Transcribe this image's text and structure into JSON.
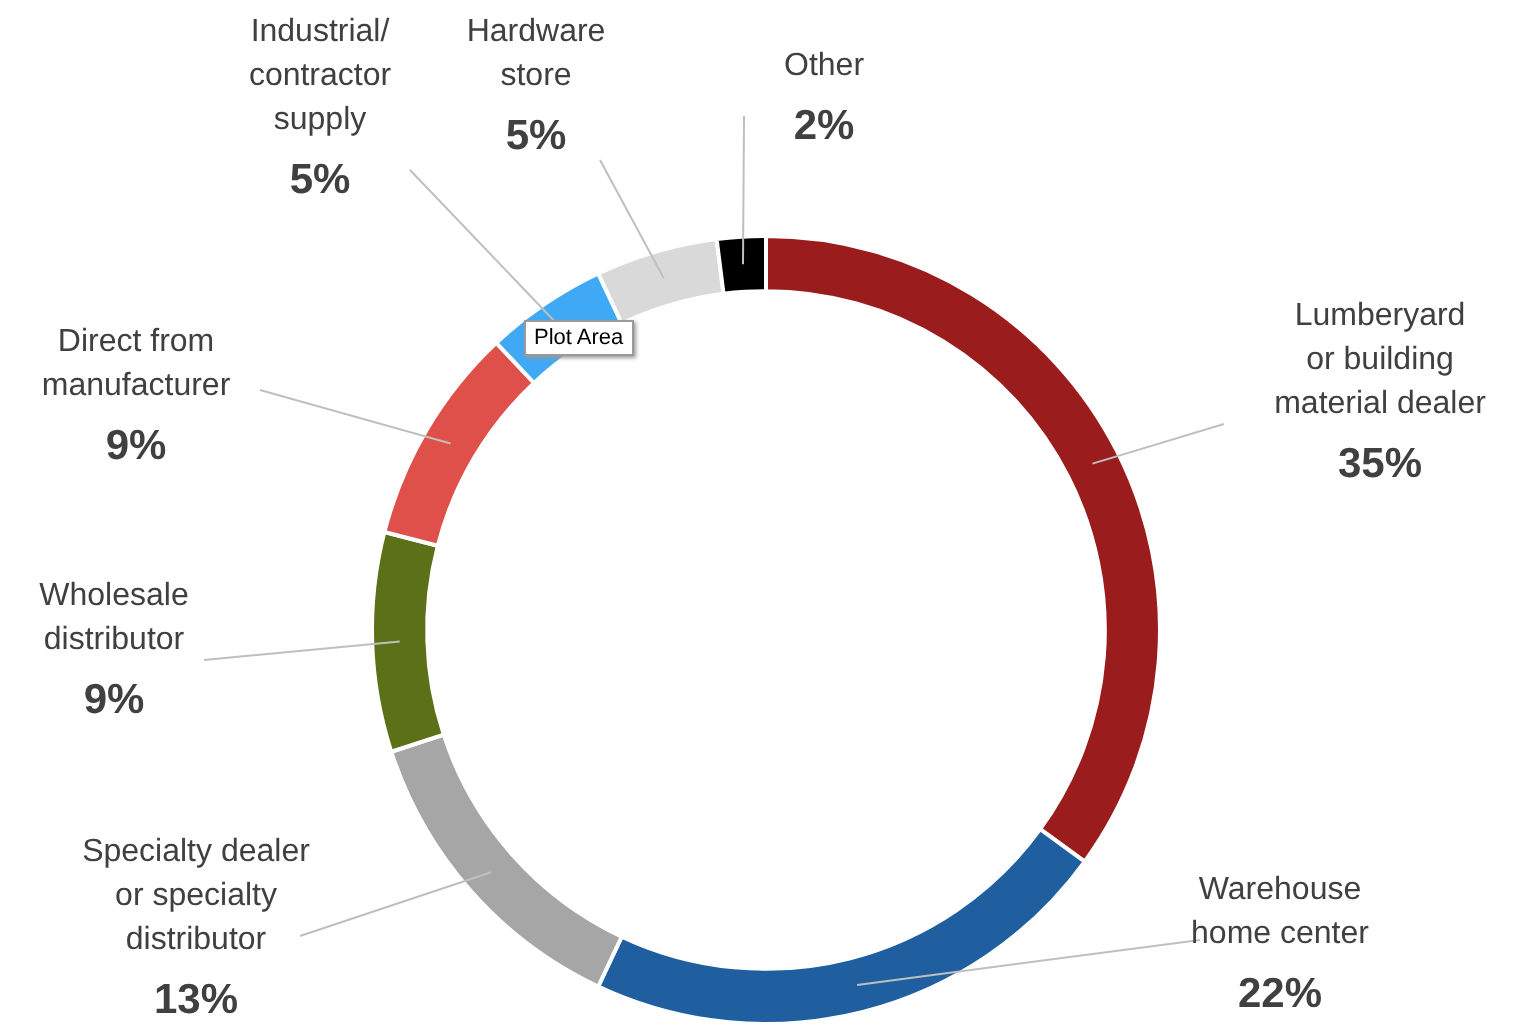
{
  "chart_data": {
    "type": "donut",
    "categories": [
      "Lumberyard\nor building\nmaterial dealer",
      "Warehouse\nhome center",
      "Specialty dealer\nor specialty\ndistributor",
      "Wholesale\ndistributor",
      "Direct from\nmanufacturer",
      "Industrial/\ncontractor\nsupply",
      "Hardware\nstore",
      "Other"
    ],
    "values": [
      35,
      22,
      13,
      9,
      9,
      5,
      5,
      2
    ],
    "value_labels": [
      "35%",
      "22%",
      "13%",
      "9%",
      "9%",
      "5%",
      "5%",
      "2%"
    ],
    "colors": [
      "#9b1c1c",
      "#1f5fa0",
      "#a6a6a6",
      "#5b7017",
      "#e0504a",
      "#3fa9f5",
      "#d9d9d9",
      "#000000"
    ],
    "legend": false,
    "annotations": [
      "Plot Area"
    ]
  }
}
